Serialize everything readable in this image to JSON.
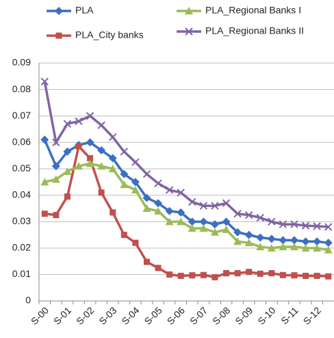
{
  "chart_data": {
    "type": "line",
    "categories": [
      "S-00",
      null,
      "S-01",
      null,
      "S-02",
      null,
      "S-03",
      null,
      "S-04",
      null,
      "S-05",
      null,
      "S-06",
      null,
      "S-07",
      null,
      "S-08",
      null,
      "S-09",
      null,
      "S-10",
      null,
      "S-11",
      null,
      "S-12",
      null
    ],
    "series": [
      {
        "name": "PLA",
        "color": "#3b6fc2",
        "marker": "diamond",
        "values": [
          0.061,
          0.051,
          0.0565,
          0.059,
          0.06,
          0.057,
          0.054,
          0.048,
          0.045,
          0.039,
          0.037,
          0.034,
          0.0335,
          0.03,
          0.03,
          0.029,
          0.03,
          0.026,
          0.025,
          0.024,
          0.0235,
          0.023,
          0.023,
          0.0225,
          0.0225,
          0.022
        ]
      },
      {
        "name": "PLA_City banks",
        "color": "#c0504d",
        "marker": "square",
        "values": [
          0.033,
          0.0325,
          0.0395,
          0.0585,
          0.054,
          0.041,
          0.0335,
          0.025,
          0.022,
          0.0148,
          0.0125,
          0.01,
          0.0095,
          0.0097,
          0.0098,
          0.009,
          0.0105,
          0.0105,
          0.011,
          0.0103,
          0.0105,
          0.0098,
          0.0097,
          0.0095,
          0.0095,
          0.0093
        ]
      },
      {
        "name": "PLA_Regional Banks I",
        "color": "#9bbb59",
        "marker": "triangle",
        "values": [
          0.045,
          0.046,
          0.049,
          0.051,
          0.052,
          0.051,
          0.05,
          0.044,
          0.042,
          0.035,
          0.034,
          0.03,
          0.03,
          0.0275,
          0.0275,
          0.026,
          0.027,
          0.0225,
          0.022,
          0.0205,
          0.02,
          0.0205,
          0.0205,
          0.02,
          0.02,
          0.0193
        ]
      },
      {
        "name": "PLA_Regional Banks II",
        "color": "#8064a2",
        "marker": "x",
        "values": [
          0.083,
          0.06,
          0.067,
          0.068,
          0.07,
          0.0665,
          0.062,
          0.0565,
          0.0525,
          0.048,
          0.0445,
          0.042,
          0.041,
          0.0375,
          0.036,
          0.036,
          0.037,
          0.033,
          0.0325,
          0.0315,
          0.03,
          0.029,
          0.029,
          0.0285,
          0.0283,
          0.028
        ]
      }
    ],
    "ylim": [
      0,
      0.09
    ],
    "yticks": [
      0,
      0.01,
      0.02,
      0.03,
      0.04,
      0.05,
      0.06,
      0.07,
      0.08,
      0.09
    ],
    "grid": true,
    "legend": "top"
  }
}
